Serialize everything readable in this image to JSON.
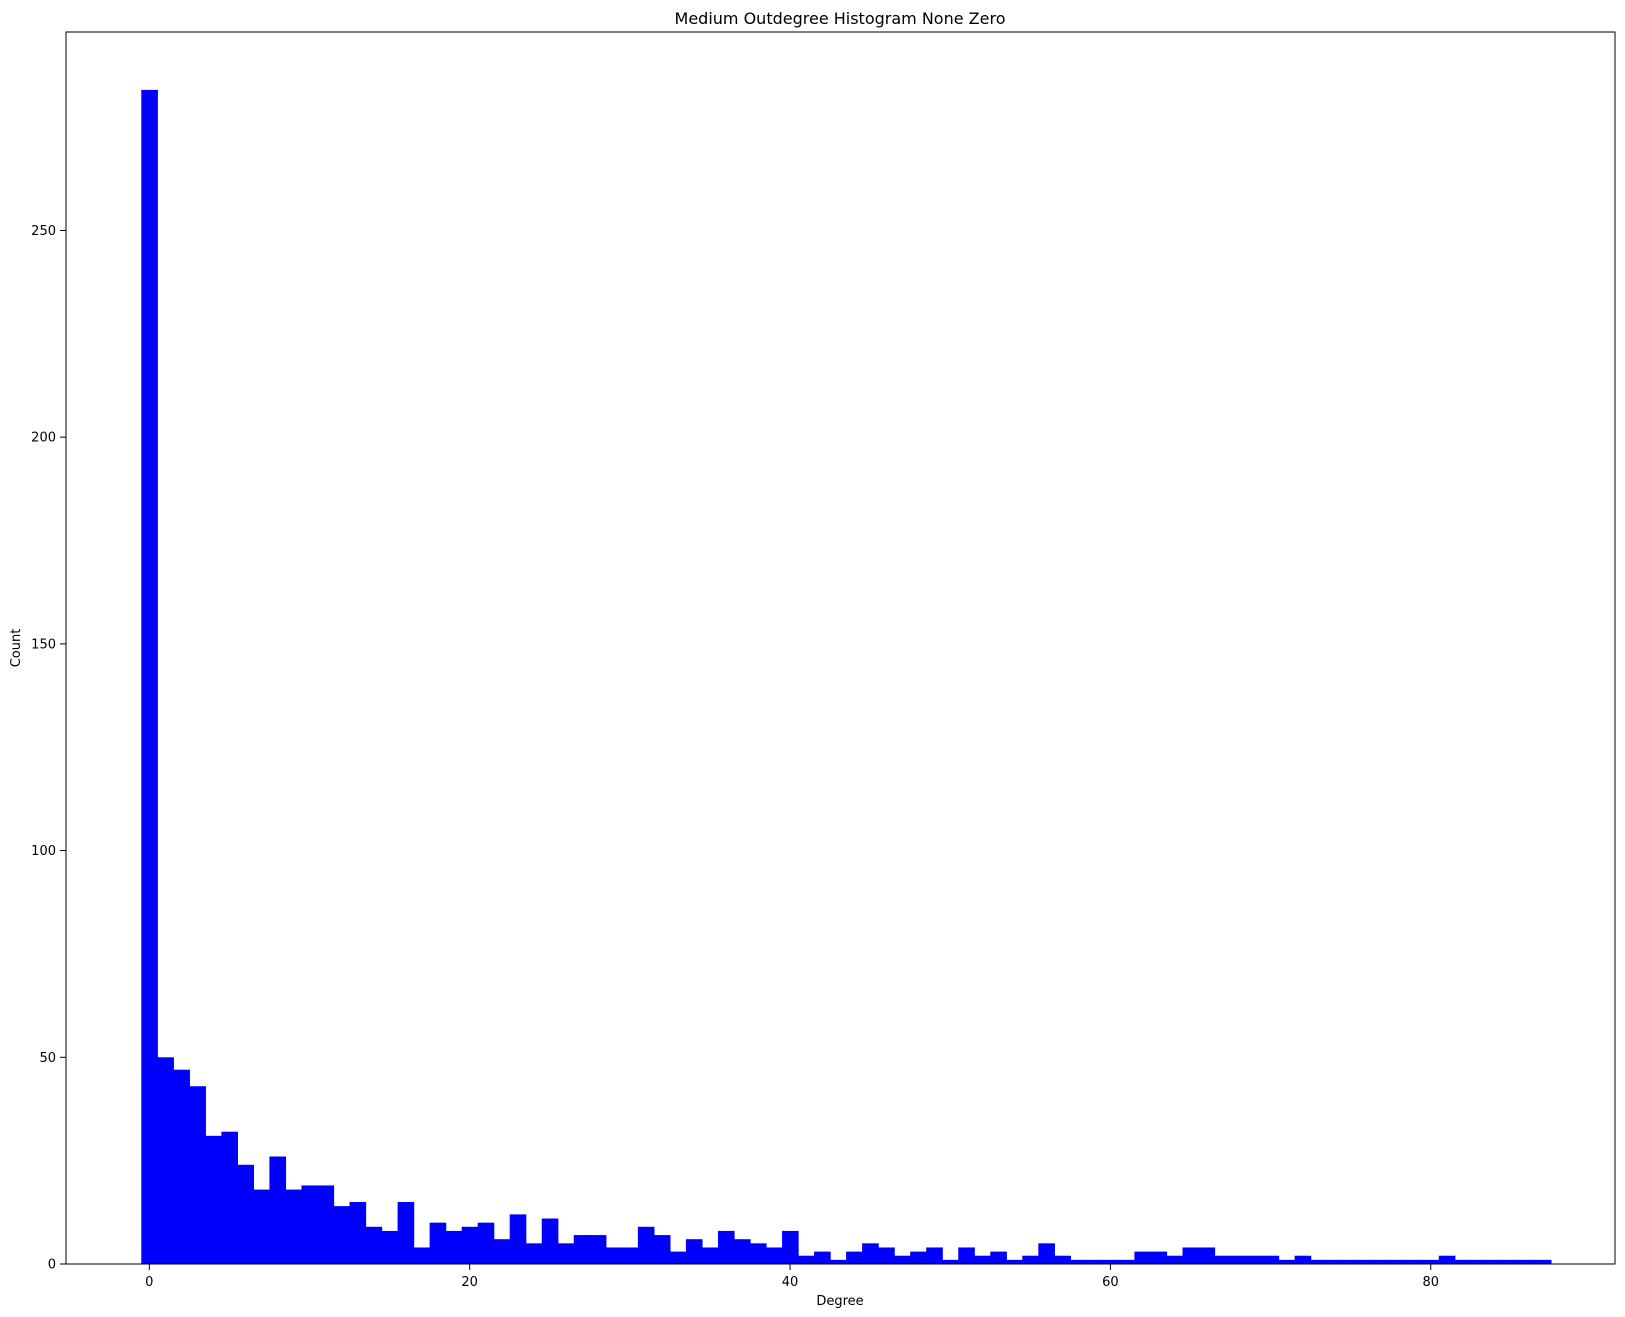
{
  "chart_data": {
    "type": "bar",
    "subtype": "histogram",
    "title": "Medium Outdegree Histogram None Zero",
    "xlabel": "Degree",
    "ylabel": "Count",
    "xlim": [
      -5.2,
      91.5
    ],
    "ylim": [
      0,
      298
    ],
    "bin_start": -0.5,
    "bin_width": 1,
    "x_ticks": [
      0,
      20,
      40,
      60,
      80
    ],
    "y_ticks": [
      0,
      50,
      100,
      150,
      200,
      250
    ],
    "x_tick_labels": [
      "0",
      "20",
      "40",
      "60",
      "80"
    ],
    "y_tick_labels": [
      "0",
      "50",
      "100",
      "150",
      "200",
      "250"
    ],
    "grid": false,
    "legend": "none",
    "bar_color": "#0000ff",
    "values": [
      284,
      50,
      47,
      43,
      31,
      32,
      24,
      18,
      26,
      18,
      19,
      19,
      14,
      15,
      9,
      8,
      15,
      4,
      10,
      8,
      9,
      10,
      6,
      12,
      5,
      11,
      5,
      7,
      7,
      4,
      4,
      9,
      7,
      3,
      6,
      4,
      8,
      6,
      5,
      4,
      8,
      2,
      3,
      1,
      3,
      5,
      4,
      2,
      3,
      4,
      1,
      4,
      2,
      3,
      1,
      2,
      5,
      2,
      1,
      1,
      1,
      1,
      3,
      3,
      2,
      4,
      4,
      2,
      2,
      2,
      2,
      1,
      2,
      1,
      1,
      1,
      1,
      1,
      1,
      1,
      1,
      2,
      1,
      1,
      1,
      1,
      1,
      1
    ]
  }
}
